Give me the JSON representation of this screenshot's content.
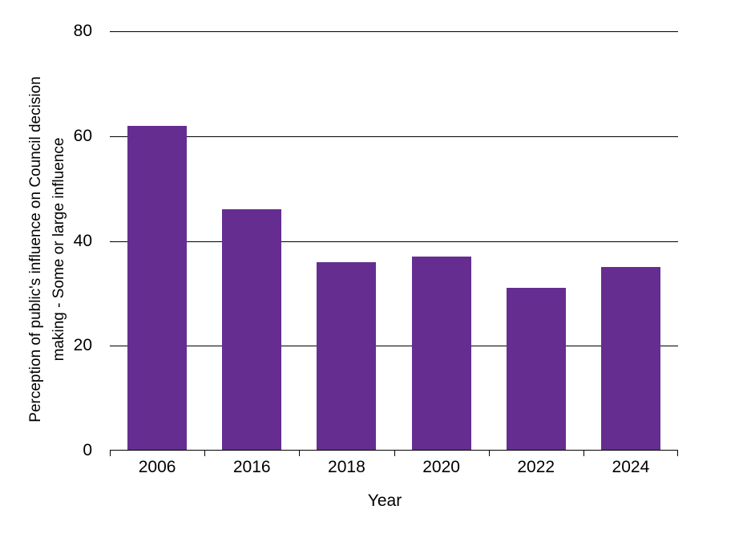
{
  "chart_data": {
    "type": "bar",
    "categories": [
      "2006",
      "2016",
      "2018",
      "2020",
      "2022",
      "2024"
    ],
    "values": [
      62,
      46,
      36,
      37,
      31,
      35
    ],
    "title": "",
    "xlabel": "Year",
    "ylabel": "Perception of public's influence on Council decision making - Some or large influence",
    "ylabel_lines": [
      "Perception of public's influence on Council decision",
      "making - Some or large influence"
    ],
    "ylim": [
      0,
      80
    ],
    "yticks": [
      0,
      20,
      40,
      60,
      80
    ],
    "grid": true,
    "legend": "none",
    "bar_color": "#662D91",
    "axis_color": "#000000",
    "background_color": "#ffffff"
  }
}
